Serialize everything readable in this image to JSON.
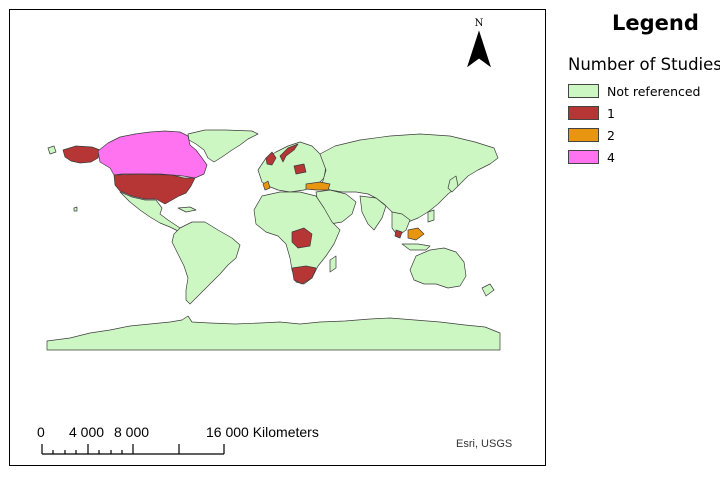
{
  "north_arrow": {
    "label": "N"
  },
  "credit": "Esri, USGS",
  "scale_bar": {
    "ticks": [
      "0",
      "4 000",
      "8 000",
      "16 000 Kilometers"
    ]
  },
  "legend": {
    "title": "Legend",
    "subtitle": "Number of Studies",
    "items": [
      {
        "label": "Not referenced",
        "color": "#ccf7c2"
      },
      {
        "label": "1",
        "color": "#b63535"
      },
      {
        "label": "2",
        "color": "#e8960f"
      },
      {
        "label": "4",
        "color": "#ff73f0"
      }
    ]
  },
  "colors": {
    "not_referenced": "#ccf7c2",
    "one": "#b63535",
    "two": "#e8960f",
    "four": "#ff73f0",
    "border": "#3c3c3c"
  }
}
